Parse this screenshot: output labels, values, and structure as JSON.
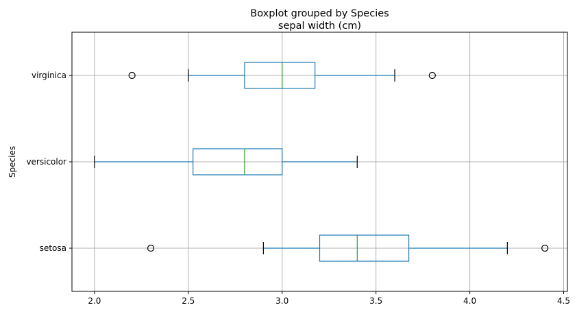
{
  "chart_data": {
    "type": "boxplot",
    "title": "Boxplot grouped by Species",
    "subtitle": "sepal width (cm)",
    "xlabel": "",
    "ylabel": "Species",
    "orientation": "horizontal",
    "xlim": [
      1.88,
      4.52
    ],
    "xticks": [
      2.0,
      2.5,
      3.0,
      3.5,
      4.0,
      4.5
    ],
    "xtick_labels": [
      "2.0",
      "2.5",
      "3.0",
      "3.5",
      "4.0",
      "4.5"
    ],
    "grid": true,
    "categories": [
      "setosa",
      "versicolor",
      "virginica"
    ],
    "boxes": [
      {
        "category": "setosa",
        "whisker_low": 2.9,
        "q1": 3.2,
        "median": 3.4,
        "q3": 3.675,
        "whisker_high": 4.2,
        "outliers": [
          2.3,
          4.4
        ]
      },
      {
        "category": "versicolor",
        "whisker_low": 2.0,
        "q1": 2.525,
        "median": 2.8,
        "q3": 3.0,
        "whisker_high": 3.4,
        "outliers": []
      },
      {
        "category": "virginica",
        "whisker_low": 2.5,
        "q1": 2.8,
        "median": 3.0,
        "q3": 3.175,
        "whisker_high": 3.6,
        "outliers": [
          2.2,
          3.8
        ]
      }
    ],
    "colors": {
      "box": "#1f77b4",
      "median": "#2ca02c",
      "grid": "#b0b0b0",
      "flier": "#000000",
      "cap": "#000000"
    }
  }
}
